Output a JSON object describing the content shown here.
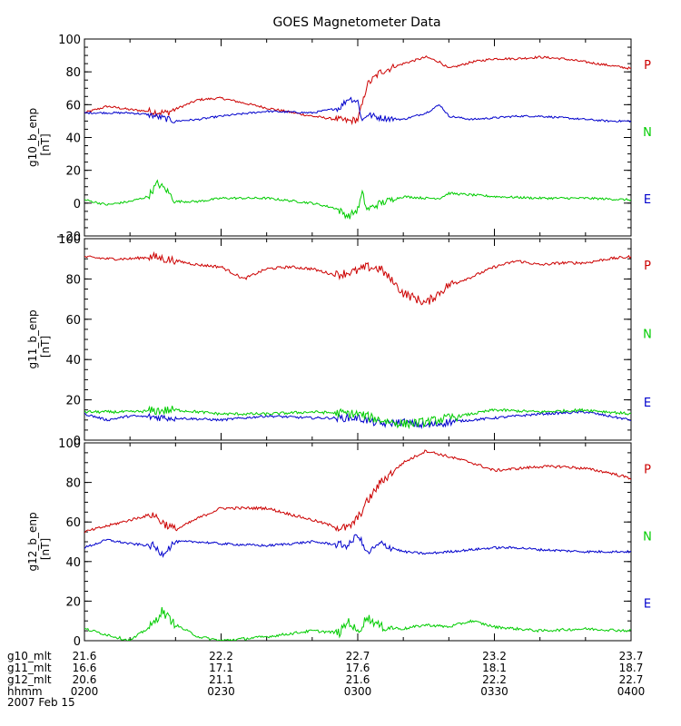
{
  "chart_data": {
    "type": "line",
    "title": "GOES Magnetometer Data",
    "colors": {
      "P": "#cc0000",
      "N": "#0000cc",
      "E": "#00cc00"
    },
    "component_labels": [
      "P",
      "N",
      "E"
    ],
    "component_label_colors": [
      "#cc0000",
      "#00cc00",
      "#0000cc"
    ],
    "x_axis": {
      "unit": "hhmm",
      "range_minutes": [
        0,
        120
      ],
      "date_label": "2007 Feb 15",
      "ticks_minutes": [
        0,
        30,
        60,
        90,
        120
      ],
      "rows": [
        {
          "label": "g10_mlt",
          "values": [
            "21.6",
            "22.2",
            "22.7",
            "23.2",
            "23.7"
          ]
        },
        {
          "label": "g11_mlt",
          "values": [
            "16.6",
            "17.1",
            "17.6",
            "18.1",
            "18.7"
          ]
        },
        {
          "label": "g12_mlt",
          "values": [
            "20.6",
            "21.1",
            "21.6",
            "22.2",
            "22.7"
          ]
        },
        {
          "label": "hhmm",
          "values": [
            "0200",
            "0230",
            "0300",
            "0330",
            "0400"
          ]
        }
      ]
    },
    "panels": [
      {
        "ylabel": "g10_b_enp",
        "unit": "[nT]",
        "ylim": [
          -20,
          100
        ],
        "yticks": [
          -20,
          0,
          20,
          40,
          60,
          80,
          100
        ],
        "series": [
          {
            "name": "P",
            "x": [
              0,
              5,
              10,
              14,
              18,
              25,
              30,
              40,
              50,
              58,
              60,
              61,
              62,
              65,
              70,
              75,
              78,
              80,
              85,
              90,
              95,
              100,
              105,
              110,
              115,
              120
            ],
            "y": [
              55,
              59,
              57,
              56,
              55,
              63,
              64,
              58,
              53,
              50,
              51,
              60,
              72,
              80,
              85,
              89,
              86,
              82,
              86,
              88,
              88,
              89,
              88,
              86,
              84,
              82
            ]
          },
          {
            "name": "N",
            "x": [
              0,
              10,
              14,
              17,
              20,
              25,
              30,
              40,
              50,
              56,
              58,
              60,
              61,
              62,
              65,
              70,
              75,
              78,
              80,
              85,
              90,
              95,
              100,
              105,
              110,
              115,
              120
            ],
            "y": [
              55,
              55,
              54,
              52,
              50,
              51,
              53,
              56,
              55,
              58,
              64,
              62,
              50,
              54,
              52,
              51,
              55,
              60,
              53,
              51,
              52,
              53,
              53,
              52,
              51,
              50,
              50
            ]
          },
          {
            "name": "E",
            "x": [
              0,
              5,
              10,
              14,
              16,
              18,
              20,
              25,
              30,
              40,
              50,
              55,
              58,
              60,
              61,
              62,
              65,
              70,
              75,
              78,
              80,
              85,
              90,
              100,
              110,
              120
            ],
            "y": [
              2,
              -1,
              1,
              4,
              12,
              8,
              1,
              1,
              3,
              3,
              0,
              -3,
              -8,
              -4,
              6,
              -4,
              0,
              4,
              3,
              3,
              6,
              5,
              4,
              3,
              3,
              2
            ]
          }
        ]
      },
      {
        "ylabel": "g11_b_enp",
        "unit": "[nT]",
        "ylim": [
          0,
          100
        ],
        "yticks": [
          0,
          20,
          40,
          60,
          80,
          100
        ],
        "series": [
          {
            "name": "P",
            "x": [
              0,
              5,
              10,
              15,
              20,
              25,
              30,
              35,
              40,
              45,
              50,
              55,
              60,
              62,
              65,
              70,
              75,
              80,
              85,
              90,
              95,
              100,
              105,
              110,
              115,
              120
            ],
            "y": [
              91,
              90,
              90,
              91,
              89,
              87,
              86,
              80,
              85,
              86,
              85,
              82,
              84,
              86,
              85,
              73,
              68,
              77,
              81,
              86,
              89,
              87,
              88,
              88,
              90,
              91
            ]
          },
          {
            "name": "N",
            "x": [
              0,
              5,
              10,
              20,
              30,
              40,
              50,
              60,
              65,
              70,
              75,
              80,
              85,
              90,
              100,
              110,
              115,
              120
            ],
            "y": [
              13,
              10,
              12,
              11,
              10,
              12,
              11,
              11,
              8,
              9,
              7,
              9,
              10,
              11,
              13,
              14,
              12,
              10
            ]
          },
          {
            "name": "E",
            "x": [
              0,
              10,
              20,
              30,
              40,
              50,
              60,
              65,
              70,
              75,
              80,
              85,
              90,
              100,
              110,
              120
            ],
            "y": [
              14,
              14,
              15,
              13,
              13,
              14,
              13,
              10,
              8,
              9,
              11,
              13,
              15,
              14,
              15,
              13
            ]
          }
        ]
      },
      {
        "ylabel": "g12_b_enp",
        "unit": "[nT]",
        "ylim": [
          0,
          100
        ],
        "yticks": [
          0,
          20,
          40,
          60,
          80,
          100
        ],
        "series": [
          {
            "name": "P",
            "x": [
              0,
              5,
              10,
              15,
              17,
              20,
              25,
              30,
              40,
              50,
              56,
              58,
              60,
              62,
              65,
              70,
              75,
              80,
              85,
              90,
              95,
              100,
              105,
              110,
              115,
              120
            ],
            "y": [
              55,
              58,
              61,
              64,
              60,
              56,
              62,
              67,
              67,
              61,
              57,
              57,
              62,
              70,
              80,
              90,
              96,
              93,
              90,
              86,
              87,
              88,
              88,
              87,
              85,
              82
            ]
          },
          {
            "name": "N",
            "x": [
              0,
              5,
              10,
              15,
              17,
              20,
              25,
              30,
              40,
              50,
              58,
              60,
              62,
              65,
              70,
              75,
              80,
              85,
              90,
              95,
              100,
              110,
              120
            ],
            "y": [
              47,
              51,
              49,
              48,
              44,
              50,
              50,
              49,
              48,
              50,
              48,
              54,
              44,
              49,
              45,
              44,
              45,
              46,
              47,
              47,
              46,
              45,
              45
            ]
          },
          {
            "name": "E",
            "x": [
              0,
              5,
              10,
              15,
              17,
              20,
              25,
              30,
              40,
              50,
              56,
              58,
              60,
              62,
              65,
              70,
              75,
              80,
              85,
              90,
              100,
              110,
              120
            ],
            "y": [
              6,
              3,
              0,
              8,
              15,
              8,
              2,
              0,
              2,
              5,
              4,
              10,
              4,
              12,
              7,
              6,
              8,
              7,
              10,
              7,
              5,
              6,
              5
            ]
          }
        ]
      }
    ]
  }
}
